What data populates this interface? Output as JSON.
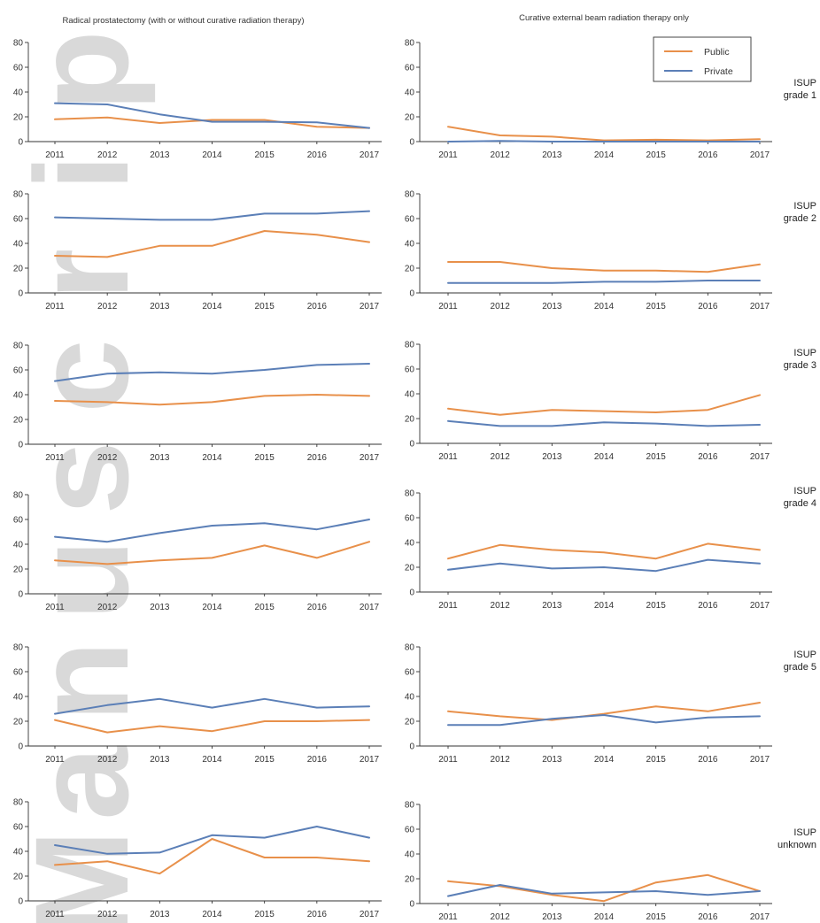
{
  "figure": {
    "left_title": "Radical prostatectomy (with or without curative radiation therapy)",
    "right_title": "Curative external beam radiation therapy only",
    "watermark_text": "Manuscript"
  },
  "legend": {
    "entries": [
      {
        "name": "Public",
        "color": "#e8904a"
      },
      {
        "name": "Private",
        "color": "#5b7fb7"
      }
    ],
    "placement": "top-right of first right panel"
  },
  "colors": {
    "public": "#e8904a",
    "private": "#5b7fb7",
    "axis": "#333333"
  },
  "chart_data": [
    {
      "type": "line",
      "panel": "radical-prostatectomy",
      "row_label": [
        "ISUP",
        "grade 1"
      ],
      "x": [
        "2011",
        "2012",
        "2013",
        "2014",
        "2015",
        "2016",
        "2017"
      ],
      "yticks": [
        0,
        20,
        40,
        60,
        80
      ],
      "ylim": [
        0,
        80
      ],
      "series": [
        {
          "name": "Public",
          "values": [
            18,
            19.5,
            15,
            17.5,
            17.5,
            12,
            11
          ]
        },
        {
          "name": "Private",
          "values": [
            31,
            30,
            22,
            16,
            16,
            15.5,
            11
          ]
        }
      ]
    },
    {
      "type": "line",
      "panel": "external-beam-rt",
      "row_label": [
        "ISUP",
        "grade 1"
      ],
      "x": [
        "2011",
        "2012",
        "2013",
        "2014",
        "2015",
        "2016",
        "2017"
      ],
      "yticks": [
        0,
        20,
        40,
        60,
        80
      ],
      "ylim": [
        0,
        80
      ],
      "series": [
        {
          "name": "Public",
          "values": [
            12,
            5,
            4,
            1,
            1.5,
            1,
            2
          ]
        },
        {
          "name": "Private",
          "values": [
            0,
            0.5,
            0,
            0,
            0,
            0,
            0
          ]
        }
      ]
    },
    {
      "type": "line",
      "panel": "radical-prostatectomy",
      "row_label": [
        "ISUP",
        "grade 2"
      ],
      "x": [
        "2011",
        "2012",
        "2013",
        "2014",
        "2015",
        "2016",
        "2017"
      ],
      "yticks": [
        0,
        20,
        40,
        60,
        80
      ],
      "ylim": [
        0,
        80
      ],
      "series": [
        {
          "name": "Public",
          "values": [
            30,
            29,
            38,
            38,
            50,
            47,
            41
          ]
        },
        {
          "name": "Private",
          "values": [
            61,
            60,
            59,
            59,
            64,
            64,
            66
          ]
        }
      ]
    },
    {
      "type": "line",
      "panel": "external-beam-rt",
      "row_label": [
        "ISUP",
        "grade 2"
      ],
      "x": [
        "2011",
        "2012",
        "2013",
        "2014",
        "2015",
        "2016",
        "2017"
      ],
      "yticks": [
        0,
        20,
        40,
        60,
        80
      ],
      "ylim": [
        0,
        80
      ],
      "series": [
        {
          "name": "Public",
          "values": [
            25,
            25,
            20,
            18,
            18,
            17,
            23
          ]
        },
        {
          "name": "Private",
          "values": [
            8,
            8,
            8,
            9,
            9,
            10,
            10
          ]
        }
      ]
    },
    {
      "type": "line",
      "panel": "radical-prostatectomy",
      "row_label": [
        "ISUP",
        "grade 3"
      ],
      "x": [
        "2011",
        "2012",
        "2013",
        "2014",
        "2015",
        "2016",
        "2017"
      ],
      "yticks": [
        0,
        20,
        40,
        60,
        80
      ],
      "ylim": [
        0,
        80
      ],
      "series": [
        {
          "name": "Public",
          "values": [
            35,
            34,
            32,
            34,
            39,
            40,
            39
          ]
        },
        {
          "name": "Private",
          "values": [
            51,
            57,
            58,
            57,
            60,
            64,
            65
          ]
        }
      ]
    },
    {
      "type": "line",
      "panel": "external-beam-rt",
      "row_label": [
        "ISUP",
        "grade 3"
      ],
      "x": [
        "2011",
        "2012",
        "2013",
        "2014",
        "2015",
        "2016",
        "2017"
      ],
      "yticks": [
        0,
        20,
        40,
        60,
        80
      ],
      "ylim": [
        0,
        80
      ],
      "series": [
        {
          "name": "Public",
          "values": [
            28,
            23,
            27,
            26,
            25,
            27,
            39
          ]
        },
        {
          "name": "Private",
          "values": [
            18,
            14,
            14,
            17,
            16,
            14,
            15
          ]
        }
      ]
    },
    {
      "type": "line",
      "panel": "radical-prostatectomy",
      "row_label": [
        "ISUP",
        "grade 4"
      ],
      "x": [
        "2011",
        "2012",
        "2013",
        "2014",
        "2015",
        "2016",
        "2017"
      ],
      "yticks": [
        0,
        20,
        40,
        60,
        80
      ],
      "ylim": [
        0,
        80
      ],
      "series": [
        {
          "name": "Public",
          "values": [
            27,
            24,
            27,
            29,
            39,
            29,
            42
          ]
        },
        {
          "name": "Private",
          "values": [
            46,
            42,
            49,
            55,
            57,
            52,
            60
          ]
        }
      ]
    },
    {
      "type": "line",
      "panel": "external-beam-rt",
      "row_label": [
        "ISUP",
        "grade 4"
      ],
      "x": [
        "2011",
        "2012",
        "2013",
        "2014",
        "2015",
        "2016",
        "2017"
      ],
      "yticks": [
        0,
        20,
        40,
        60,
        80
      ],
      "ylim": [
        0,
        80
      ],
      "series": [
        {
          "name": "Public",
          "values": [
            27,
            38,
            34,
            32,
            27,
            39,
            34
          ]
        },
        {
          "name": "Private",
          "values": [
            18,
            23,
            19,
            20,
            17,
            26,
            23
          ]
        }
      ]
    },
    {
      "type": "line",
      "panel": "radical-prostatectomy",
      "row_label": [
        "ISUP",
        "grade 5"
      ],
      "x": [
        "2011",
        "2012",
        "2013",
        "2014",
        "2015",
        "2016",
        "2017"
      ],
      "yticks": [
        0,
        20,
        40,
        60,
        80
      ],
      "ylim": [
        0,
        80
      ],
      "series": [
        {
          "name": "Public",
          "values": [
            21,
            11,
            16,
            12,
            20,
            20,
            21
          ]
        },
        {
          "name": "Private",
          "values": [
            26,
            33,
            38,
            31,
            38,
            31,
            32
          ]
        }
      ]
    },
    {
      "type": "line",
      "panel": "external-beam-rt",
      "row_label": [
        "ISUP",
        "grade 5"
      ],
      "x": [
        "2011",
        "2012",
        "2013",
        "2014",
        "2015",
        "2016",
        "2017"
      ],
      "yticks": [
        0,
        20,
        40,
        60,
        80
      ],
      "ylim": [
        0,
        80
      ],
      "series": [
        {
          "name": "Public",
          "values": [
            28,
            24,
            21,
            26,
            32,
            28,
            35
          ]
        },
        {
          "name": "Private",
          "values": [
            17,
            17,
            22,
            25,
            19,
            23,
            24
          ]
        }
      ]
    },
    {
      "type": "line",
      "panel": "radical-prostatectomy",
      "row_label": [
        "ISUP",
        "unknown"
      ],
      "x": [
        "2011",
        "2012",
        "2013",
        "2014",
        "2015",
        "2016",
        "2017"
      ],
      "yticks": [
        0,
        20,
        40,
        60,
        80
      ],
      "ylim": [
        0,
        80
      ],
      "series": [
        {
          "name": "Public",
          "values": [
            29,
            32,
            22,
            50,
            35,
            35,
            32
          ]
        },
        {
          "name": "Private",
          "values": [
            45,
            38,
            39,
            53,
            51,
            60,
            51
          ]
        }
      ]
    },
    {
      "type": "line",
      "panel": "external-beam-rt",
      "row_label": [
        "ISUP",
        "unknown"
      ],
      "x": [
        "2011",
        "2012",
        "2013",
        "2014",
        "2015",
        "2016",
        "2017"
      ],
      "yticks": [
        0,
        20,
        40,
        60,
        80
      ],
      "ylim": [
        0,
        80
      ],
      "series": [
        {
          "name": "Public",
          "values": [
            18,
            14,
            7,
            2,
            17,
            23,
            10
          ]
        },
        {
          "name": "Private",
          "values": [
            6,
            15,
            8,
            9,
            10,
            7,
            10
          ]
        }
      ]
    }
  ]
}
